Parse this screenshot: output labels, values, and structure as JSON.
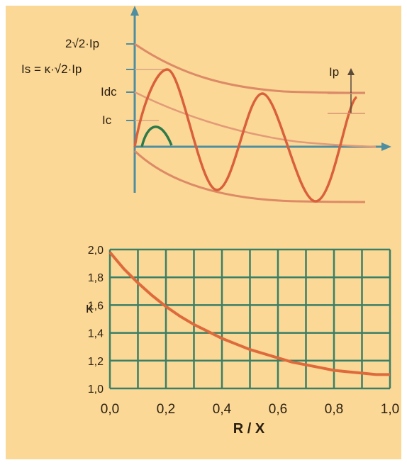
{
  "chart_data": [
    {
      "type": "line",
      "description_labels": {
        "y_peak_label": "2√2·Ip",
        "y_is_label": "Is = κ·√2·Ip",
        "y_idc_label": "Idc",
        "y_ic_label": "Ic",
        "ip_label": "Ip"
      },
      "colors": {
        "envelope": "#dd8a66",
        "sine": "#d9603a",
        "dc_decay": "#e39a78",
        "ic_arc": "#2f7a4a",
        "axis": "#4f8ea0"
      }
    },
    {
      "type": "line",
      "xlabel": "R / X",
      "ylabel": "κ",
      "xlim": [
        0.0,
        1.0
      ],
      "ylim": [
        1.0,
        2.0
      ],
      "grid": true,
      "x_ticks": [
        "0,0",
        "0,2",
        "0,4",
        "0,6",
        "0,8",
        "1,0"
      ],
      "y_ticks": [
        "1,0",
        "1,2",
        "1,4",
        "1,6",
        "1,8",
        "2,0"
      ],
      "series": [
        {
          "x": [
            0.0,
            0.05,
            0.1,
            0.15,
            0.2,
            0.25,
            0.3,
            0.35,
            0.4,
            0.45,
            0.5,
            0.55,
            0.6,
            0.65,
            0.7,
            0.75,
            0.8,
            0.85,
            0.9,
            0.95,
            1.0
          ],
          "values": [
            1.98,
            1.86,
            1.76,
            1.67,
            1.59,
            1.52,
            1.46,
            1.41,
            1.36,
            1.32,
            1.28,
            1.25,
            1.22,
            1.19,
            1.17,
            1.15,
            1.13,
            1.12,
            1.11,
            1.1,
            1.1
          ]
        }
      ],
      "colors": {
        "grid": "#3b7f66",
        "curve": "#de6a3c"
      }
    }
  ]
}
